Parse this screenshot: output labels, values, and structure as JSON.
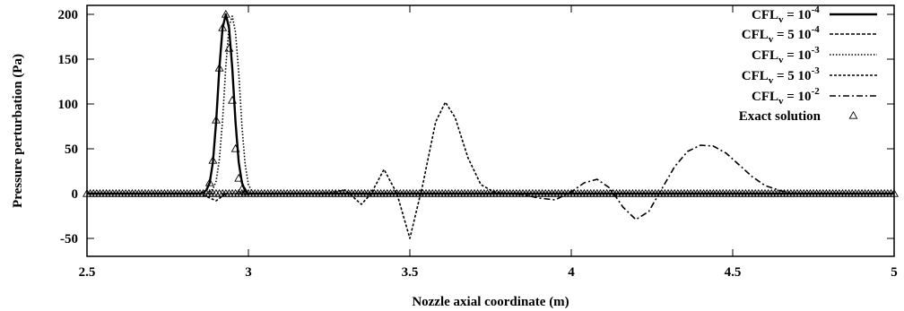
{
  "chart_data": {
    "type": "line",
    "title": "",
    "xlabel": "Nozzle axial coordinate (m)",
    "ylabel": "Pressure perturbation (Pa)",
    "xlim": [
      2.5,
      5
    ],
    "ylim": [
      -70,
      210
    ],
    "xticks": [
      "2.5",
      "3",
      "3.5",
      "4",
      "4.5",
      "5"
    ],
    "xtick_values": [
      2.5,
      3,
      3.5,
      4,
      4.5,
      5
    ],
    "yticks": [
      "-50",
      "0",
      "50",
      "100",
      "150",
      "200"
    ],
    "ytick_values": [
      -50,
      0,
      50,
      100,
      150,
      200
    ],
    "grid": false,
    "legend_position": "top-right",
    "series": [
      {
        "name": "CFL_v = 10^-4",
        "legend": {
          "base": "CFL",
          "sub": "v",
          "eq": " = ",
          "coef": "",
          "exp_base": "10",
          "exp": "-4"
        },
        "style": "solid",
        "x": [
          2.5,
          2.85,
          2.86,
          2.87,
          2.88,
          2.89,
          2.9,
          2.91,
          2.92,
          2.93,
          2.94,
          2.95,
          2.96,
          2.97,
          2.98,
          2.99,
          3.0,
          5.0
        ],
        "y": [
          0,
          0,
          1,
          4,
          12,
          35,
          80,
          140,
          185,
          200,
          185,
          140,
          80,
          35,
          12,
          3,
          0,
          0
        ]
      },
      {
        "name": "CFL_v = 5 10^-4",
        "legend": {
          "base": "CFL",
          "sub": "v",
          "eq": " = ",
          "coef": "5 ",
          "exp_base": "10",
          "exp": "-4"
        },
        "style": "dashed",
        "x": [
          2.5,
          2.85,
          2.86,
          2.87,
          2.88,
          2.89,
          2.9,
          2.91,
          2.92,
          2.93,
          2.94,
          2.95,
          2.96,
          2.97,
          2.98,
          2.99,
          3.0,
          5.0
        ],
        "y": [
          0,
          0,
          1,
          4,
          12,
          35,
          79,
          139,
          184,
          199,
          186,
          141,
          81,
          36,
          13,
          3,
          0,
          0
        ]
      },
      {
        "name": "CFL_v = 10^-3",
        "legend": {
          "base": "CFL",
          "sub": "v",
          "eq": " = ",
          "coef": "",
          "exp_base": "10",
          "exp": "-3"
        },
        "style": "dotted",
        "x": [
          2.5,
          2.87,
          2.88,
          2.89,
          2.9,
          2.91,
          2.92,
          2.93,
          2.94,
          2.95,
          2.96,
          2.97,
          2.98,
          2.99,
          3.0,
          3.01,
          3.02,
          5.0
        ],
        "y": [
          0,
          0,
          2,
          5,
          14,
          38,
          82,
          142,
          187,
          198,
          180,
          135,
          75,
          32,
          10,
          3,
          0,
          0
        ]
      },
      {
        "name": "CFL_v = 5 10^-3",
        "legend": {
          "base": "CFL",
          "sub": "v",
          "eq": " = ",
          "coef": "5 ",
          "exp_base": "10",
          "exp": "-3"
        },
        "style": "fine-dashed",
        "x": [
          2.5,
          2.85,
          2.9,
          2.93,
          2.96,
          3.0,
          3.2,
          3.25,
          3.3,
          3.35,
          3.38,
          3.42,
          3.46,
          3.5,
          3.54,
          3.58,
          3.61,
          3.64,
          3.68,
          3.72,
          3.76,
          3.8,
          3.9,
          4.0,
          5.0
        ],
        "y": [
          0,
          0,
          -8,
          0,
          0,
          0,
          0,
          1,
          4,
          -12,
          0,
          27,
          0,
          -50,
          10,
          80,
          102,
          85,
          40,
          10,
          2,
          0,
          0,
          0,
          0
        ]
      },
      {
        "name": "CFL_v = 10^-2",
        "legend": {
          "base": "CFL",
          "sub": "v",
          "eq": " = ",
          "coef": "",
          "exp_base": "10",
          "exp": "-2"
        },
        "style": "dash-dot",
        "x": [
          2.5,
          3.6,
          3.7,
          3.8,
          3.85,
          3.9,
          3.95,
          4.0,
          4.04,
          4.08,
          4.12,
          4.16,
          4.2,
          4.24,
          4.28,
          4.32,
          4.36,
          4.4,
          4.44,
          4.48,
          4.52,
          4.56,
          4.6,
          4.65,
          4.7,
          4.8,
          5.0
        ],
        "y": [
          0,
          0,
          0,
          0,
          -1,
          -5,
          -7,
          2,
          12,
          16,
          6,
          -15,
          -29,
          -20,
          5,
          30,
          47,
          54,
          53,
          45,
          32,
          19,
          9,
          3,
          0,
          0,
          0
        ]
      },
      {
        "name": "Exact solution",
        "legend": {
          "base": "Exact solution",
          "sub": "",
          "eq": "",
          "coef": "",
          "exp_base": "",
          "exp": ""
        },
        "style": "triangles",
        "peak": {
          "x": [
            2.88,
            2.89,
            2.9,
            2.91,
            2.92,
            2.93,
            2.94,
            2.95,
            2.96,
            2.97,
            2.98,
            2.99
          ],
          "y": [
            12,
            37,
            82,
            140,
            185,
            200,
            162,
            104,
            50,
            17,
            5,
            2
          ]
        },
        "baseline": {
          "x_start": 2.5,
          "x_end": 5.0,
          "step": 0.01,
          "y": 0
        }
      }
    ]
  }
}
